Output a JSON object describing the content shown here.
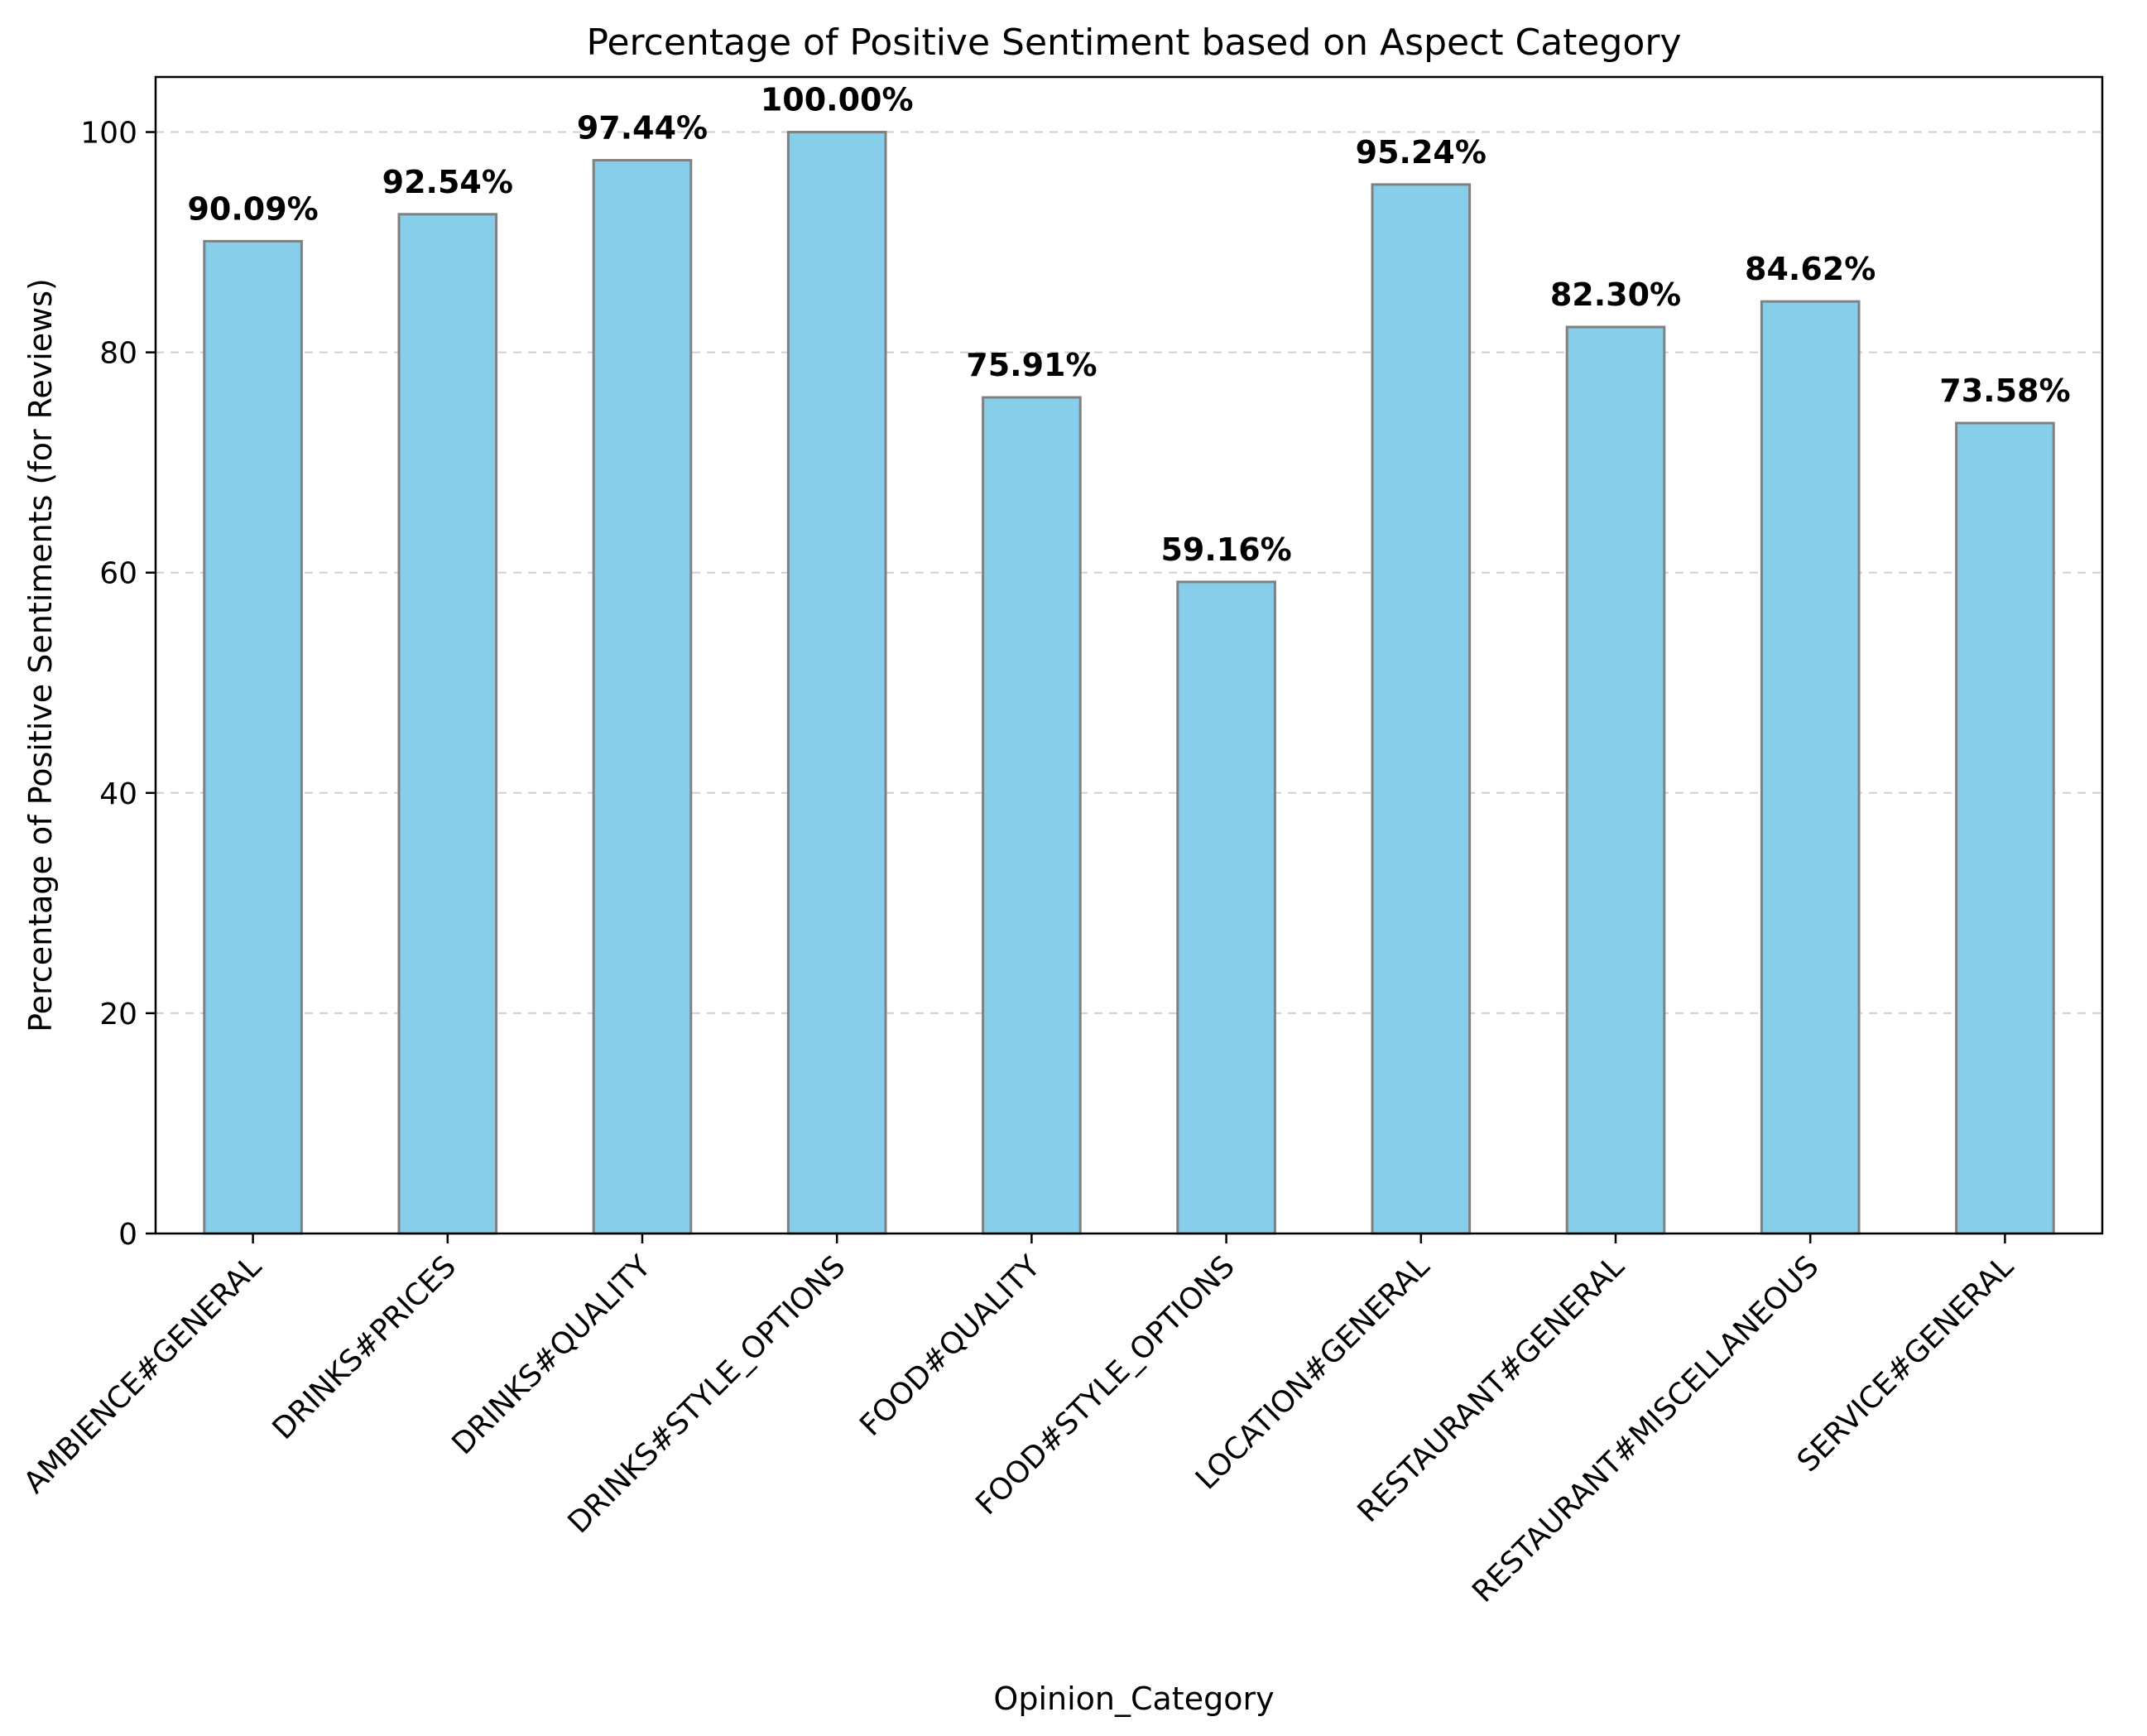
{
  "chart_data": {
    "type": "bar",
    "title": "Percentage of Positive Sentiment based on Aspect Category",
    "xlabel": "Opinion_Category",
    "ylabel": "Percentage of Positive Sentiments (for Reviews)",
    "categories": [
      "AMBIENCE#GENERAL",
      "DRINKS#PRICES",
      "DRINKS#QUALITY",
      "DRINKS#STYLE_OPTIONS",
      "FOOD#QUALITY",
      "FOOD#STYLE_OPTIONS",
      "LOCATION#GENERAL",
      "RESTAURANT#GENERAL",
      "RESTAURANT#MISCELLANEOUS",
      "SERVICE#GENERAL"
    ],
    "values": [
      90.09,
      92.54,
      97.44,
      100.0,
      75.91,
      59.16,
      95.24,
      82.3,
      84.62,
      73.58
    ],
    "data_labels": [
      "90.09%",
      "92.54%",
      "97.44%",
      "100.00%",
      "75.91%",
      "59.16%",
      "95.24%",
      "82.30%",
      "84.62%",
      "73.58%"
    ],
    "ylim": [
      0,
      105
    ],
    "yticks": [
      0,
      20,
      40,
      60,
      80,
      100
    ],
    "grid": "y-dashed",
    "bar_color": "#87ceeb",
    "bar_edge_color": "#808080"
  }
}
